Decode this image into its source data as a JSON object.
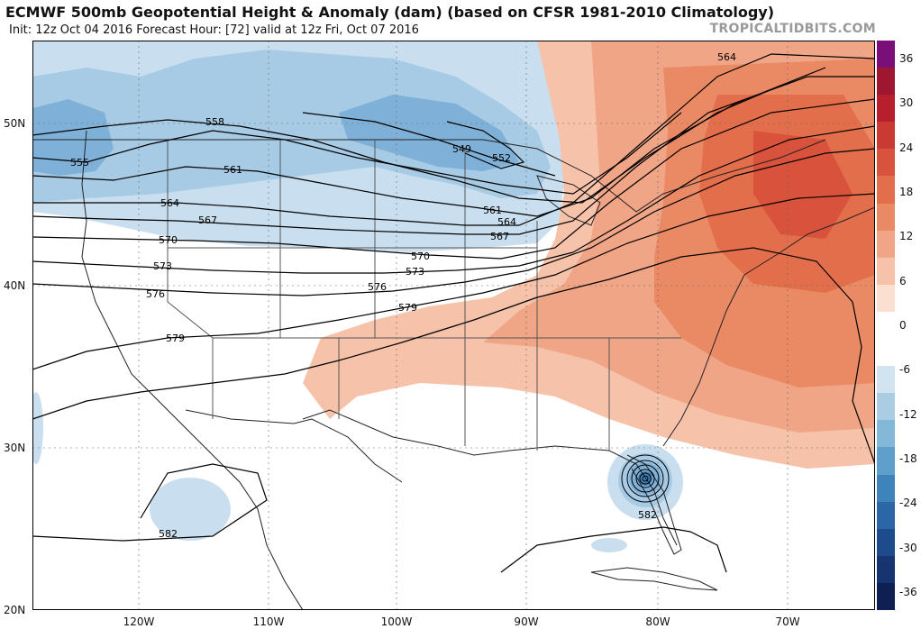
{
  "title": "ECMWF 500mb Geopotential Height & Anomaly (dam) (based on CFSR 1981-2010 Climatology)",
  "subtitle": "Init: 12z Oct 04 2016   Forecast Hour: [72]   valid at 12z Fri, Oct 07 2016",
  "credit": "TROPICALTIDBITS.COM",
  "lat_labels": [
    "50N",
    "40N",
    "30N",
    "20N"
  ],
  "lon_labels": [
    "120W",
    "110W",
    "100W",
    "90W",
    "80W",
    "70W"
  ],
  "colorbar": {
    "ticks": [
      "36",
      "30",
      "24",
      "18",
      "12",
      "6",
      "0",
      "-6",
      "-12",
      "-18",
      "-24",
      "-30",
      "-36"
    ],
    "colors": [
      "#7a0f7a",
      "#9e1630",
      "#b71f2c",
      "#c93a33",
      "#d9533c",
      "#e36e4b",
      "#ea8a65",
      "#f0a586",
      "#f6c3aa",
      "#fbe0d1",
      "#ffffff",
      "#ffffff",
      "#d2e4f0",
      "#aacde3",
      "#84b8d8",
      "#5e9fcc",
      "#3f83bb",
      "#2b66a6",
      "#1d4b8c",
      "#163470",
      "#0f1f52"
    ]
  },
  "contours": [
    {
      "label": "549"
    },
    {
      "label": "552"
    },
    {
      "label": "555"
    },
    {
      "label": "558"
    },
    {
      "label": "561"
    },
    {
      "label": "564"
    },
    {
      "label": "567"
    },
    {
      "label": "570"
    },
    {
      "label": "573"
    },
    {
      "label": "576"
    },
    {
      "label": "579"
    },
    {
      "label": "582"
    }
  ]
}
